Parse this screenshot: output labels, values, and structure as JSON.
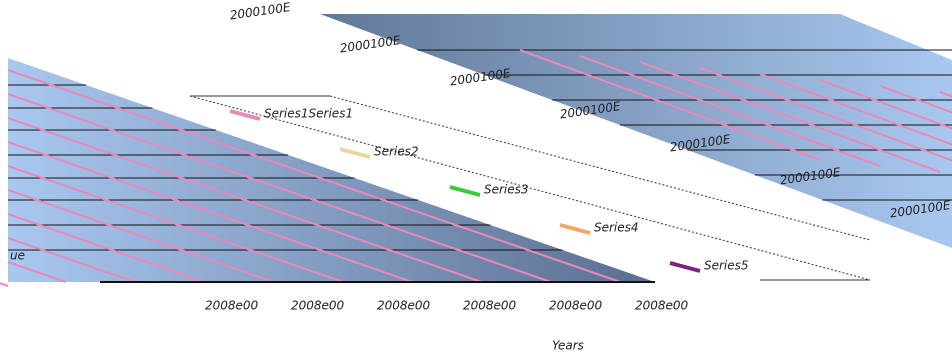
{
  "diagonal_labels": [
    "2000100E",
    "2000100E",
    "2000100E",
    "2000100E",
    "2000100E",
    "2000100E",
    "2000100E"
  ],
  "left_label": "ue",
  "bottom_labels": [
    "2008e00",
    "2008e00",
    "2008e00",
    "2008e00",
    "2008e00",
    "2008e00"
  ],
  "legend": [
    {
      "label": "Series1Series1",
      "color": "#e88ab8"
    },
    {
      "label": "Series2",
      "color": "#e8d8a0"
    },
    {
      "label": "Series3",
      "color": "#33cc33"
    },
    {
      "label": "Series4",
      "color": "#f0a860"
    },
    {
      "label": "Series5",
      "color": "#802080"
    }
  ],
  "axis_title": "Years"
}
